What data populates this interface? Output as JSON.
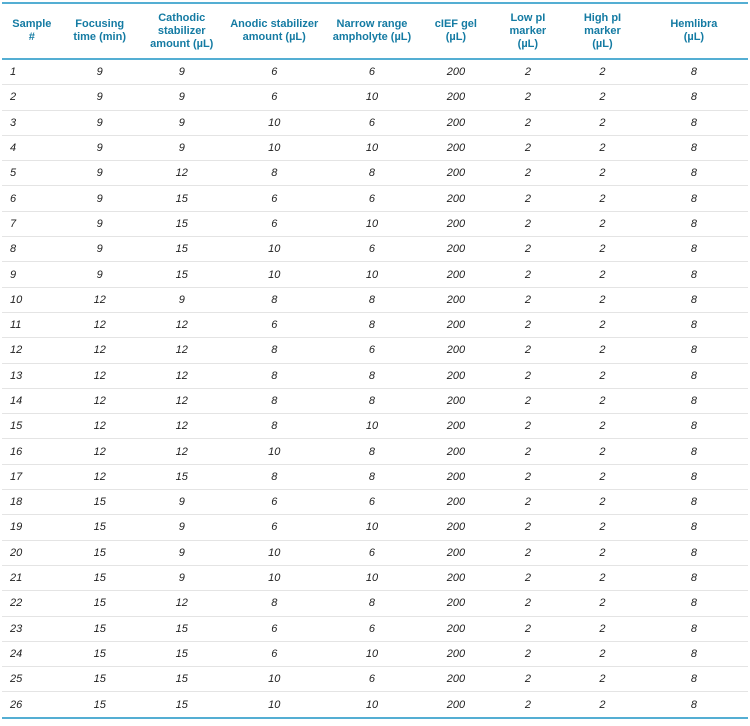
{
  "table": {
    "columns": [
      {
        "id": "sample_number",
        "label": "Sample\n#"
      },
      {
        "id": "focusing_time",
        "label": "Focusing\ntime (min)"
      },
      {
        "id": "cathodic_stabilizer_amount",
        "label": "Cathodic\nstabilizer\namount (µL)"
      },
      {
        "id": "anodic_stabilizer_amount",
        "label": "Anodic stabilizer\namount (µL)"
      },
      {
        "id": "narrow_range_ampholyte",
        "label": "Narrow range\nampholyte (µL)"
      },
      {
        "id": "cief_gel",
        "label": "cIEF gel\n(µL)"
      },
      {
        "id": "low_pi_marker",
        "label": "Low pI\nmarker\n(µL)"
      },
      {
        "id": "high_pi_marker",
        "label": "High pI\nmarker\n(µL)"
      },
      {
        "id": "hemlibra",
        "label": "Hemlibra\n(µL)"
      }
    ],
    "rows": [
      [
        1,
        9,
        9,
        6,
        6,
        200,
        2,
        2,
        8
      ],
      [
        2,
        9,
        9,
        6,
        10,
        200,
        2,
        2,
        8
      ],
      [
        3,
        9,
        9,
        10,
        6,
        200,
        2,
        2,
        8
      ],
      [
        4,
        9,
        9,
        10,
        10,
        200,
        2,
        2,
        8
      ],
      [
        5,
        9,
        12,
        8,
        8,
        200,
        2,
        2,
        8
      ],
      [
        6,
        9,
        15,
        6,
        6,
        200,
        2,
        2,
        8
      ],
      [
        7,
        9,
        15,
        6,
        10,
        200,
        2,
        2,
        8
      ],
      [
        8,
        9,
        15,
        10,
        6,
        200,
        2,
        2,
        8
      ],
      [
        9,
        9,
        15,
        10,
        10,
        200,
        2,
        2,
        8
      ],
      [
        10,
        12,
        9,
        8,
        8,
        200,
        2,
        2,
        8
      ],
      [
        11,
        12,
        12,
        6,
        8,
        200,
        2,
        2,
        8
      ],
      [
        12,
        12,
        12,
        8,
        6,
        200,
        2,
        2,
        8
      ],
      [
        13,
        12,
        12,
        8,
        8,
        200,
        2,
        2,
        8
      ],
      [
        14,
        12,
        12,
        8,
        8,
        200,
        2,
        2,
        8
      ],
      [
        15,
        12,
        12,
        8,
        10,
        200,
        2,
        2,
        8
      ],
      [
        16,
        12,
        12,
        10,
        8,
        200,
        2,
        2,
        8
      ],
      [
        17,
        12,
        15,
        8,
        8,
        200,
        2,
        2,
        8
      ],
      [
        18,
        15,
        9,
        6,
        6,
        200,
        2,
        2,
        8
      ],
      [
        19,
        15,
        9,
        6,
        10,
        200,
        2,
        2,
        8
      ],
      [
        20,
        15,
        9,
        10,
        6,
        200,
        2,
        2,
        8
      ],
      [
        21,
        15,
        9,
        10,
        10,
        200,
        2,
        2,
        8
      ],
      [
        22,
        15,
        12,
        8,
        8,
        200,
        2,
        2,
        8
      ],
      [
        23,
        15,
        15,
        6,
        6,
        200,
        2,
        2,
        8
      ],
      [
        24,
        15,
        15,
        6,
        10,
        200,
        2,
        2,
        8
      ],
      [
        25,
        15,
        15,
        10,
        6,
        200,
        2,
        2,
        8
      ],
      [
        26,
        15,
        15,
        10,
        10,
        200,
        2,
        2,
        8
      ]
    ]
  },
  "colors": {
    "header_text": "#147ba3",
    "rule_line": "#54aed3",
    "row_separator": "#e4e4e4",
    "data_text": "#1f1f1f"
  }
}
